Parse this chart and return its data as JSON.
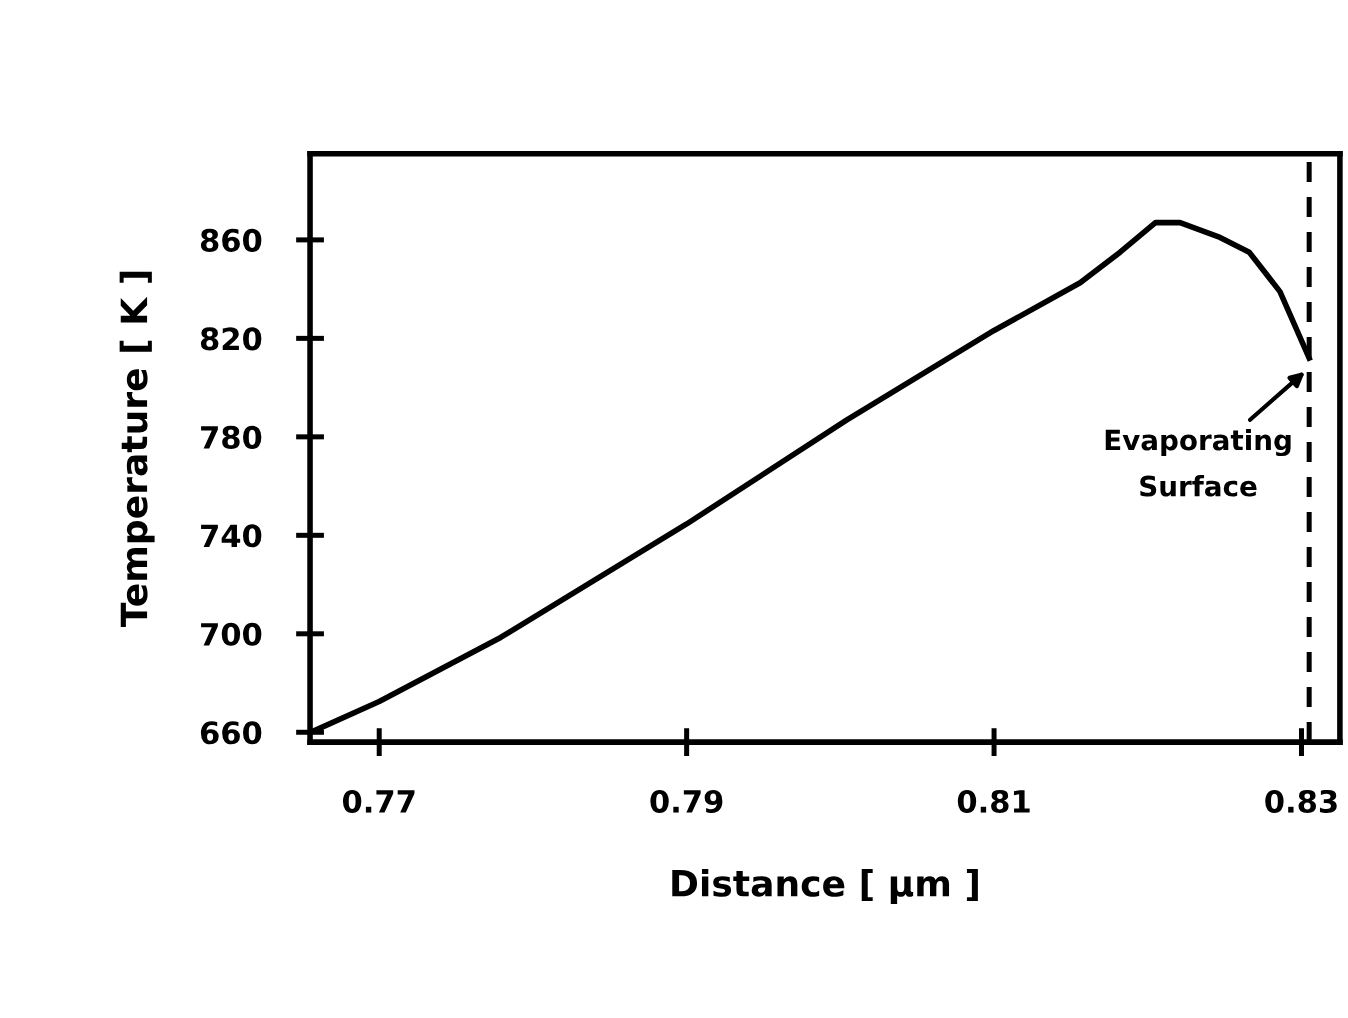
{
  "chart_data": {
    "type": "line",
    "xlabel": "Distance [ µm ]",
    "ylabel": "Temperature [ K ]",
    "series": [
      {
        "color": "#000000",
        "x": [
          0.76555,
          0.77,
          0.7779,
          0.79,
          0.8004,
          0.81,
          0.8156,
          0.8182,
          0.8205,
          0.8221,
          0.8247,
          0.8266,
          0.8286,
          0.8305
        ],
        "values": [
          660,
          672.5,
          698.5,
          744.6,
          786.8,
          823.2,
          842.6,
          855,
          867,
          867,
          861,
          855,
          839,
          812
        ]
      }
    ],
    "xlim": [
      0.7655,
      0.8325
    ],
    "ylim": [
      656,
      895
    ],
    "xticks": [
      0.77,
      0.79,
      0.81,
      0.83
    ],
    "yticks": [
      660,
      700,
      740,
      780,
      820,
      860
    ],
    "ref_lines": [
      {
        "axis": "x",
        "value": 0.8305,
        "label": null,
        "color": "#000000",
        "line_style": "dashed"
      }
    ],
    "annotations": [
      {
        "text": "Evaporating\nSurface",
        "x": 0.8305,
        "y": 808
      }
    ],
    "grid": false,
    "legend": false,
    "marker": "none",
    "line_style": "solid"
  }
}
